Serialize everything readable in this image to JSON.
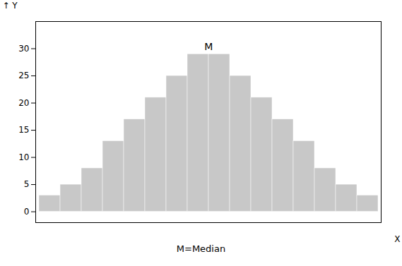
{
  "chart_data": {
    "type": "bar",
    "categories": [
      null,
      null,
      null,
      null,
      null,
      null,
      null,
      null,
      null,
      null,
      null,
      null,
      null,
      null,
      null,
      null
    ],
    "values": [
      3,
      5,
      8,
      13,
      17,
      21,
      25,
      29,
      29,
      25,
      21,
      17,
      13,
      8,
      5,
      3
    ],
    "color": "#c8c8c8",
    "xlabel": "X",
    "ylabel": "Y",
    "ylim": [
      -2,
      35
    ],
    "yticks": [
      0,
      5,
      10,
      15,
      20,
      25,
      30
    ],
    "annotations": [
      "M",
      "M=Median"
    ],
    "grid": false
  }
}
